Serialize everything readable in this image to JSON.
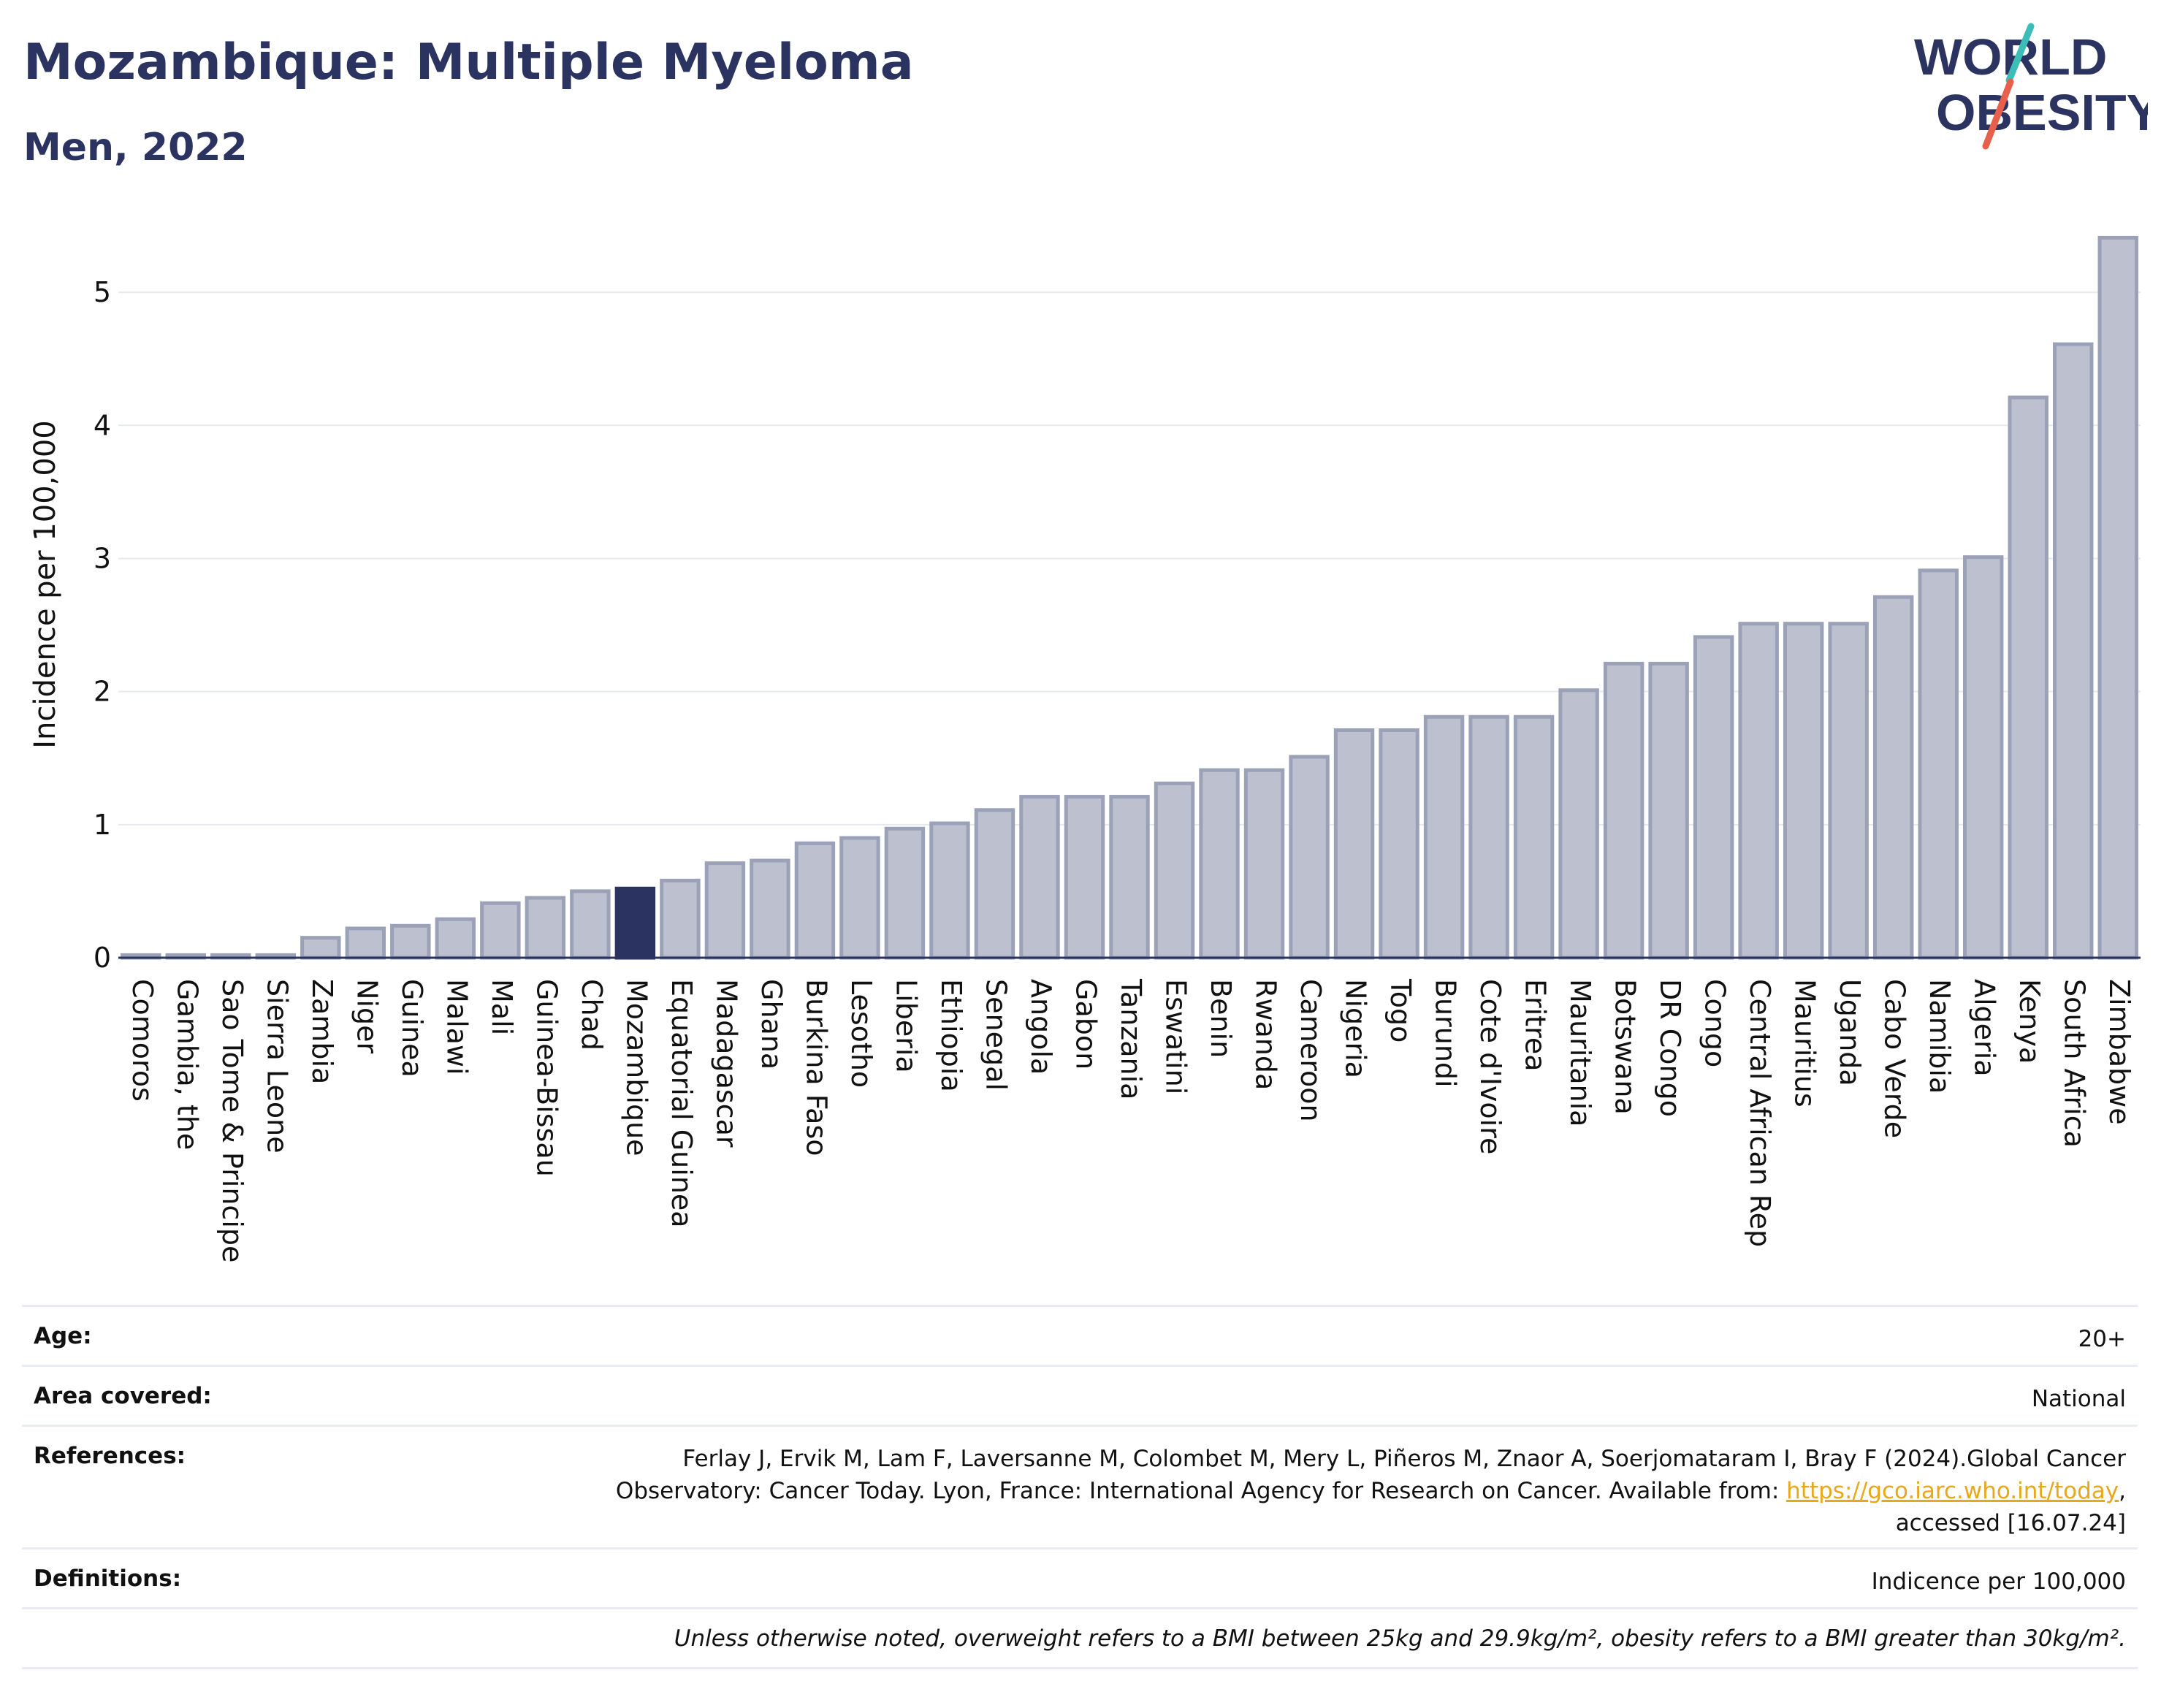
{
  "header": {
    "title": "Mozambique: Multiple Myeloma",
    "subtitle": "Men, 2022"
  },
  "logo": {
    "line1": "WORLD",
    "line2": "OBESITY"
  },
  "colors": {
    "title": "#2b3461",
    "bar_default": "#bcc0cf",
    "bar_default_stroke": "#9ba2b8",
    "bar_highlight": "#2b3461",
    "axis": "#2b3461",
    "grid": "#e6e9ef",
    "link": "#e8a81c",
    "logo_teal": "#3cbdb8",
    "logo_red": "#e8604c"
  },
  "chart_data": {
    "type": "bar",
    "title": "Mozambique: Multiple Myeloma",
    "subtitle": "Men, 2022",
    "ylabel": "Incidence per 100,000",
    "xlabel": "",
    "ylim": [
      0,
      5.5
    ],
    "yticks": [
      0,
      1,
      2,
      3,
      4,
      5
    ],
    "grid": true,
    "highlight": "Mozambique",
    "categories": [
      "Comoros",
      "Gambia, the",
      "Sao Tome & Principe",
      "Sierra Leone",
      "Zambia",
      "Niger",
      "Guinea",
      "Malawi",
      "Mali",
      "Guinea-Bissau",
      "Chad",
      "Mozambique",
      "Equatorial Guinea",
      "Madagascar",
      "Ghana",
      "Burkina Faso",
      "Lesotho",
      "Liberia",
      "Ethiopia",
      "Senegal",
      "Angola",
      "Gabon",
      "Tanzania",
      "Eswatini",
      "Benin",
      "Rwanda",
      "Cameroon",
      "Nigeria",
      "Togo",
      "Burundi",
      "Cote d'Ivoire",
      "Eritrea",
      "Mauritania",
      "Botswana",
      "DR Congo",
      "Congo",
      "Central African Rep",
      "Mauritius",
      "Uganda",
      "Cabo Verde",
      "Namibia",
      "Algeria",
      "Kenya",
      "South Africa",
      "Zimbabwe"
    ],
    "values": [
      0.02,
      0.02,
      0.02,
      0.02,
      0.15,
      0.22,
      0.24,
      0.29,
      0.41,
      0.45,
      0.5,
      0.52,
      0.58,
      0.71,
      0.73,
      0.86,
      0.9,
      0.97,
      1.01,
      1.11,
      1.21,
      1.21,
      1.21,
      1.31,
      1.41,
      1.41,
      1.51,
      1.71,
      1.71,
      1.81,
      1.81,
      1.81,
      2.01,
      2.21,
      2.21,
      2.41,
      2.51,
      2.51,
      2.51,
      2.71,
      2.91,
      3.01,
      4.21,
      4.61,
      5.41
    ]
  },
  "info": {
    "age_label": "Age:",
    "age_value": "20+",
    "area_label": "Area covered:",
    "area_value": "National",
    "references_label": "References:",
    "references_line1": "Ferlay J, Ervik M, Lam F, Laversanne M, Colombet M, Mery L, Piñeros M, Znaor A, Soerjomataram I, Bray F (2024).Global Cancer",
    "references_line2_prefix": "Observatory: Cancer Today. Lyon, France: International Agency for Research on Cancer. Available from: ",
    "references_link": "https://gco.iarc.who.int/today",
    "references_line2_suffix": ",",
    "references_line3": "accessed [16.07.24]",
    "definitions_label": "Definitions:",
    "definitions_value": "Indicence per 100,000",
    "note": "Unless otherwise noted, overweight refers to a BMI between 25kg and 29.9kg/m², obesity refers to a BMI greater than 30kg/m²."
  }
}
